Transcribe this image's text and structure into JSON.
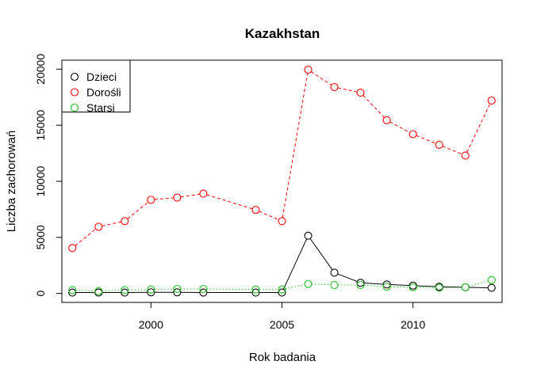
{
  "chart_data": {
    "type": "line",
    "title": "Kazakhstan",
    "xlabel": "Rok badania",
    "ylabel": "Liczba zachorowań",
    "xlim": [
      1996.6,
      2013.4
    ],
    "ylim": [
      -800,
      20800
    ],
    "x_ticks": [
      2000,
      2005,
      2010
    ],
    "y_ticks": [
      0,
      5000,
      10000,
      15000,
      20000
    ],
    "grid": false,
    "legend_position": "top-left",
    "series": [
      {
        "name": "Dzieci",
        "color": "#000000",
        "line_style": "solid",
        "points": [
          [
            1997,
            80
          ],
          [
            1998,
            80
          ],
          [
            1999,
            80
          ],
          [
            2000,
            100
          ],
          [
            2001,
            100
          ],
          [
            2002,
            80
          ],
          [
            2004,
            80
          ],
          [
            2005,
            80
          ],
          [
            2006,
            5150
          ],
          [
            2007,
            1850
          ],
          [
            2008,
            950
          ],
          [
            2009,
            800
          ],
          [
            2010,
            700
          ],
          [
            2011,
            600
          ],
          [
            2012,
            550
          ],
          [
            2013,
            500
          ]
        ]
      },
      {
        "name": "Dorośli",
        "color": "#ff0000",
        "line_style": "dashed",
        "points": [
          [
            1997,
            4050
          ],
          [
            1998,
            5950
          ],
          [
            1999,
            6450
          ],
          [
            2000,
            8350
          ],
          [
            2001,
            8550
          ],
          [
            2002,
            8900
          ],
          [
            2004,
            7450
          ],
          [
            2005,
            6450
          ],
          [
            2006,
            19950
          ],
          [
            2007,
            18400
          ],
          [
            2008,
            17900
          ],
          [
            2009,
            15450
          ],
          [
            2010,
            14200
          ],
          [
            2011,
            13250
          ],
          [
            2012,
            12300
          ],
          [
            2013,
            17200
          ]
        ]
      },
      {
        "name": "Starsi",
        "color": "#22bb22",
        "line_style": "dotted",
        "points": [
          [
            1997,
            300
          ],
          [
            1998,
            200
          ],
          [
            1999,
            300
          ],
          [
            2000,
            350
          ],
          [
            2001,
            400
          ],
          [
            2002,
            400
          ],
          [
            2004,
            350
          ],
          [
            2005,
            350
          ],
          [
            2006,
            850
          ],
          [
            2007,
            750
          ],
          [
            2008,
            750
          ],
          [
            2009,
            600
          ],
          [
            2010,
            550
          ],
          [
            2011,
            500
          ],
          [
            2012,
            550
          ],
          [
            2013,
            1200
          ]
        ]
      }
    ]
  }
}
